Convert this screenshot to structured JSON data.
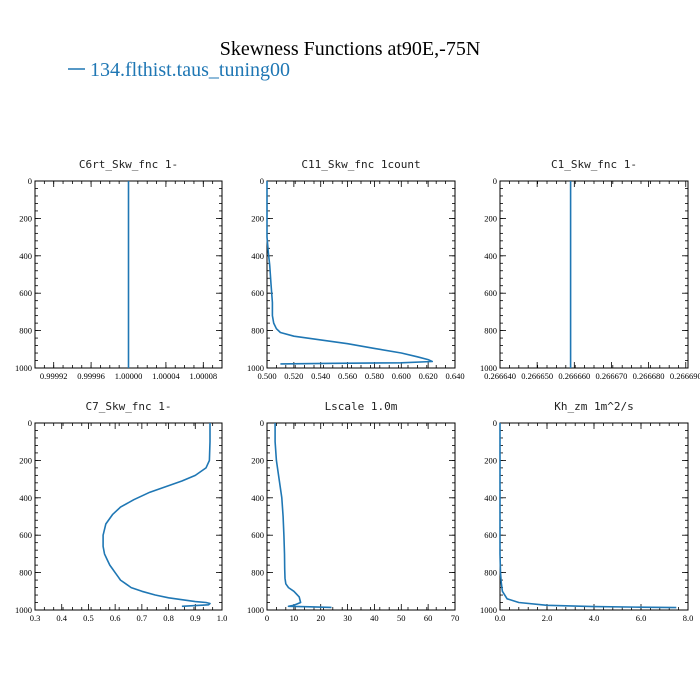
{
  "figure": {
    "title": "Skewness Functions at90E,-75N",
    "legend": {
      "label": "134.flthist.taus_tuning00",
      "color": "#1f77b4"
    }
  },
  "chart_data": [
    {
      "type": "line",
      "title": "C6rt_Skw_fnc   1-",
      "xlim": [
        0.9999,
        1.0001
      ],
      "ylim": [
        1000,
        0
      ],
      "xticks": [
        "0.99992",
        "0.99996",
        "1.00000",
        "1.00004",
        "1.00008"
      ],
      "xtick_values": [
        0.99992,
        0.99996,
        1.0,
        1.00004,
        1.00008
      ],
      "yticks": [
        0,
        200,
        400,
        600,
        800,
        1000
      ],
      "series": [
        {
          "x": [
            1.0,
            1.0
          ],
          "y": [
            0,
            1000
          ]
        }
      ]
    },
    {
      "type": "line",
      "title": "C11_Skw_fnc   1count",
      "xlim": [
        0.5,
        0.64
      ],
      "ylim": [
        1000,
        0
      ],
      "xticks": [
        "0.500",
        "0.520",
        "0.540",
        "0.560",
        "0.580",
        "0.600",
        "0.620",
        "0.640"
      ],
      "xtick_values": [
        0.5,
        0.52,
        0.54,
        0.56,
        0.58,
        0.6,
        0.62,
        0.64
      ],
      "yticks": [
        0,
        200,
        400,
        600,
        800,
        1000
      ],
      "series": [
        {
          "x": [
            0.5,
            0.5,
            0.501,
            0.502,
            0.503,
            0.504,
            0.504,
            0.505,
            0.507,
            0.51,
            0.52,
            0.54,
            0.56,
            0.58,
            0.6,
            0.612,
            0.62,
            0.623,
            0.6,
            0.55,
            0.51
          ],
          "y": [
            0,
            300,
            380,
            450,
            550,
            650,
            720,
            760,
            790,
            810,
            830,
            850,
            870,
            895,
            920,
            940,
            955,
            965,
            972,
            975,
            978
          ]
        }
      ]
    },
    {
      "type": "line",
      "title": "C1_Skw_fnc   1-",
      "xlim": [
        0.26664,
        0.2666906
      ],
      "ylim": [
        1000,
        0
      ],
      "xticks": [
        "0.266640",
        "0.266650",
        "0.266660",
        "0.266670",
        "0.266680",
        "0.266690"
      ],
      "xtick_values": [
        0.26664,
        0.26665,
        0.26666,
        0.26667,
        0.26668,
        0.26669
      ],
      "yticks": [
        0,
        200,
        400,
        600,
        800,
        1000
      ],
      "series": [
        {
          "x": [
            0.266659,
            0.266659
          ],
          "y": [
            0,
            1000
          ]
        }
      ]
    },
    {
      "type": "line",
      "title": "C7_Skw_fnc   1-",
      "xlim": [
        0.3,
        1.0
      ],
      "ylim": [
        1000,
        0
      ],
      "xticks": [
        "0.3",
        "0.4",
        "0.5",
        "0.6",
        "0.7",
        "0.8",
        "0.9",
        "1.0"
      ],
      "xtick_values": [
        0.3,
        0.4,
        0.5,
        0.6,
        0.7,
        0.8,
        0.9,
        1.0
      ],
      "yticks": [
        0,
        200,
        400,
        600,
        800,
        1000
      ],
      "series": [
        {
          "x": [
            0.955,
            0.955,
            0.953,
            0.94,
            0.9,
            0.85,
            0.79,
            0.73,
            0.67,
            0.62,
            0.59,
            0.565,
            0.555,
            0.555,
            0.56,
            0.57,
            0.58,
            0.59,
            0.6,
            0.61,
            0.62,
            0.64,
            0.66,
            0.7,
            0.75,
            0.8,
            0.85,
            0.9,
            0.94,
            0.955,
            0.95,
            0.85
          ],
          "y": [
            0,
            100,
            200,
            240,
            280,
            310,
            340,
            370,
            410,
            450,
            490,
            540,
            600,
            660,
            700,
            730,
            760,
            780,
            800,
            820,
            840,
            860,
            880,
            900,
            920,
            935,
            945,
            955,
            960,
            965,
            972,
            980
          ]
        }
      ]
    },
    {
      "type": "line",
      "title": "Lscale   1.0m",
      "xlim": [
        0,
        70
      ],
      "ylim": [
        1000,
        0
      ],
      "xticks": [
        "0",
        "10",
        "20",
        "30",
        "40",
        "50",
        "60",
        "70"
      ],
      "xtick_values": [
        0,
        10,
        20,
        30,
        40,
        50,
        60,
        70
      ],
      "yticks": [
        0,
        200,
        400,
        600,
        800,
        1000
      ],
      "series": [
        {
          "x": [
            3,
            3,
            3.5,
            4.5,
            5.5,
            6,
            6.3,
            6.5,
            6.6,
            6.7,
            7,
            8,
            10,
            12,
            12.5,
            10,
            8,
            16,
            24
          ],
          "y": [
            0,
            100,
            200,
            300,
            400,
            500,
            600,
            700,
            780,
            830,
            860,
            880,
            900,
            930,
            960,
            975,
            980,
            983,
            986
          ]
        }
      ]
    },
    {
      "type": "line",
      "title": "Kh_zm   1m^2/s",
      "xlim": [
        0,
        8
      ],
      "ylim": [
        1000,
        0
      ],
      "xticks": [
        "0.0",
        "2.0",
        "4.0",
        "6.0",
        "8.0"
      ],
      "xtick_values": [
        0,
        2,
        4,
        6,
        8
      ],
      "yticks": [
        0,
        200,
        400,
        600,
        800,
        1000
      ],
      "series": [
        {
          "x": [
            0,
            0,
            0.02,
            0.05,
            0.1,
            0.3,
            0.8,
            2.0,
            4.0,
            6.0,
            7.5
          ],
          "y": [
            0,
            700,
            800,
            850,
            900,
            940,
            960,
            975,
            982,
            985,
            987
          ]
        }
      ]
    }
  ]
}
